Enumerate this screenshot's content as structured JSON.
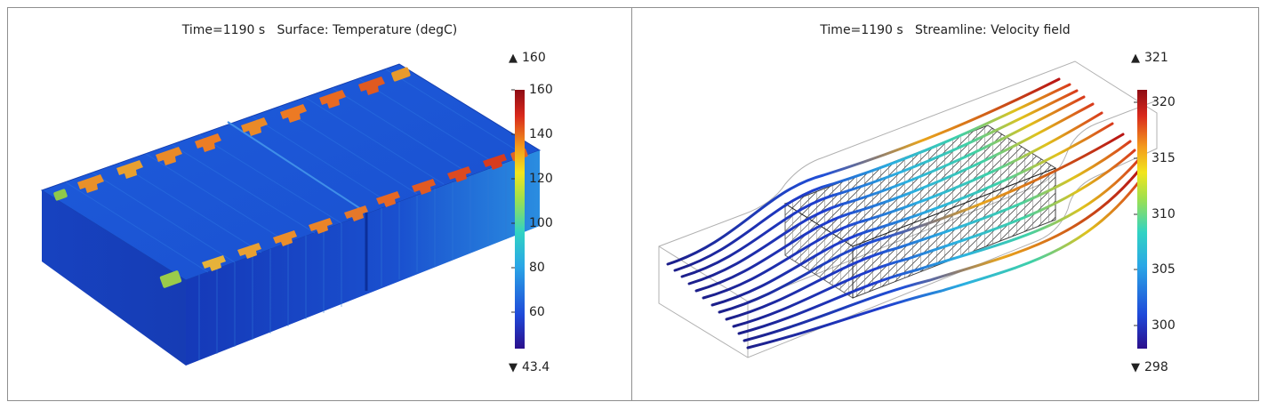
{
  "left_panel": {
    "title": "Time=1190 s   Surface: Temperature (degC)",
    "colorbar": {
      "max_label": "160",
      "min_label": "43.4",
      "ticks": [
        "160",
        "140",
        "120",
        "100",
        "80",
        "60"
      ]
    }
  },
  "right_panel": {
    "title": "Time=1190 s   Streamline: Velocity field",
    "colorbar": {
      "max_label": "321",
      "min_label": "298",
      "ticks": [
        "320",
        "315",
        "310",
        "305",
        "300"
      ]
    }
  },
  "colors": {
    "colormap": [
      "#2b0f8c",
      "#1f49d9",
      "#2aa7e6",
      "#31d3c3",
      "#9fe04e",
      "#f2e51c",
      "#f39a1c",
      "#d9291c",
      "#8e0b14"
    ],
    "pack_blue": "#1a52d6",
    "frame_border": "#8f8f8f"
  }
}
